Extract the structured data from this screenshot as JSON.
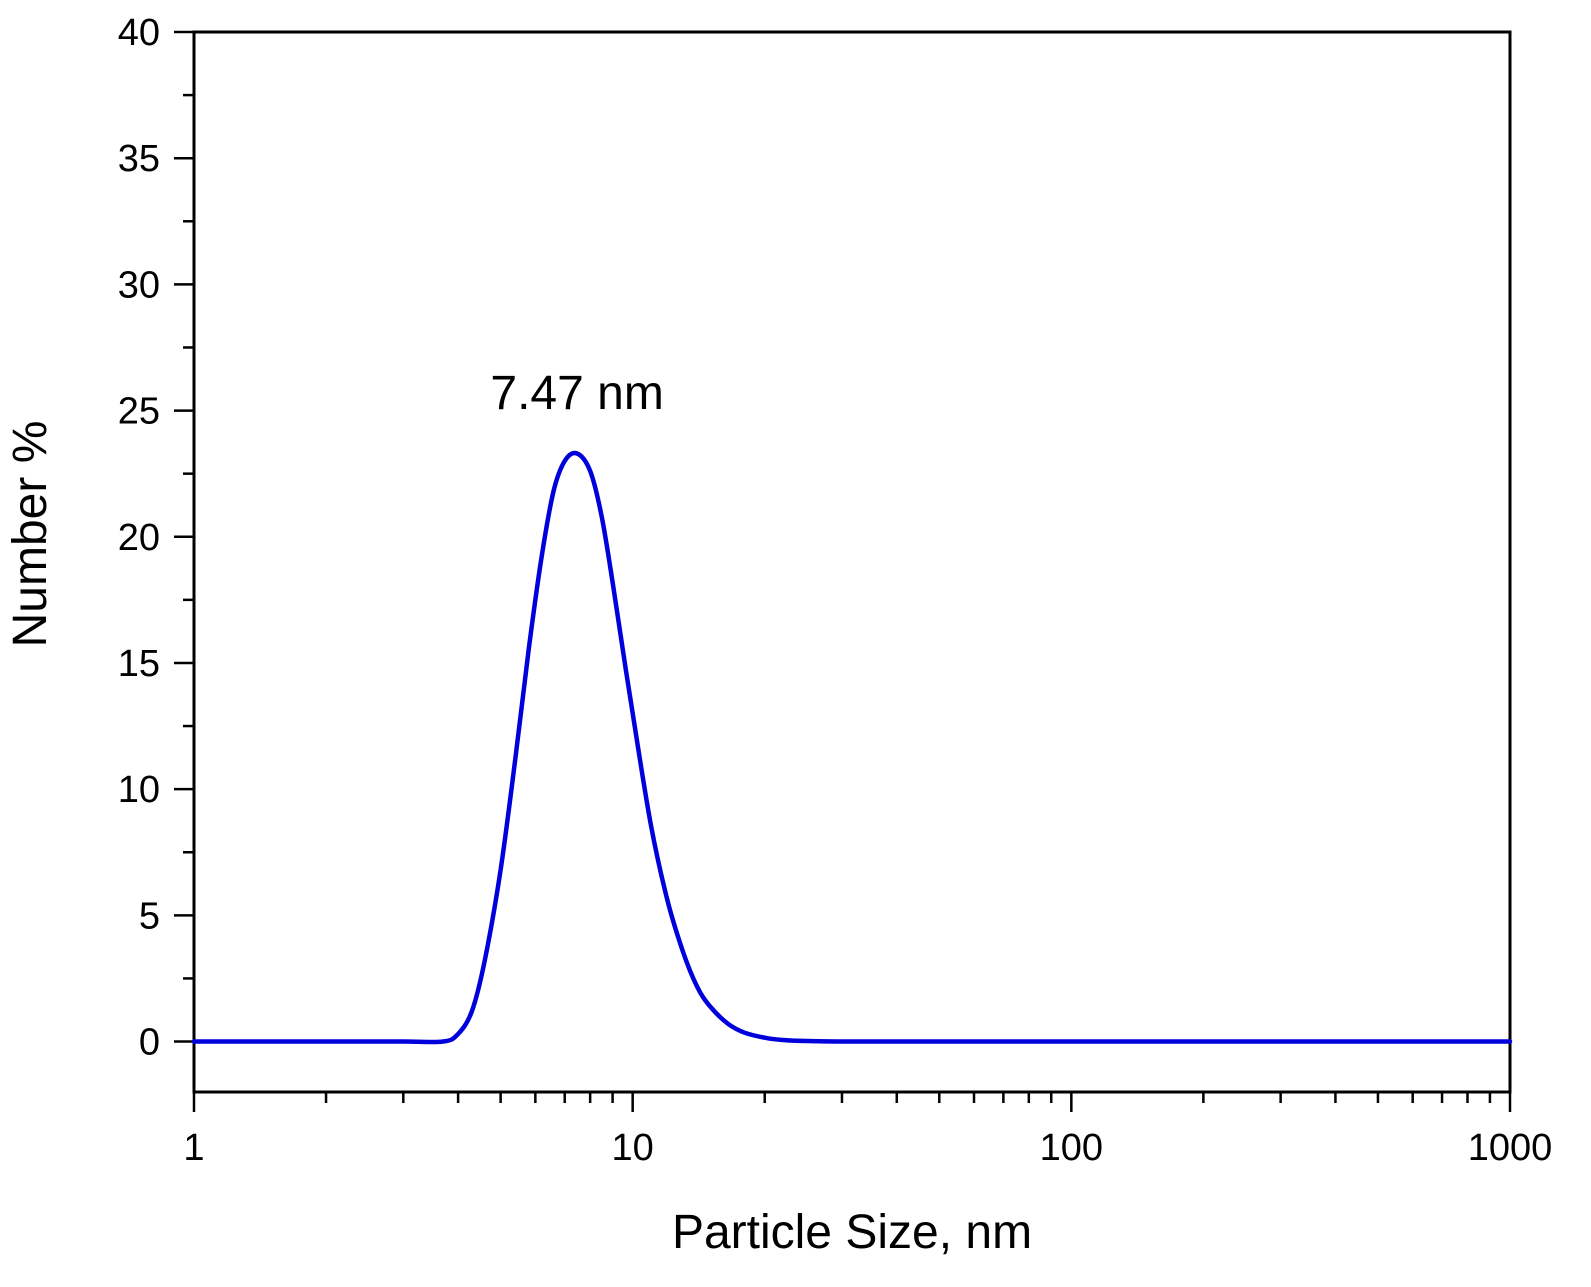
{
  "chart_data": {
    "type": "line",
    "xlabel": "Particle Size, nm",
    "ylabel": "Number %",
    "x_scale": "log",
    "xlim": [
      1,
      1000
    ],
    "ylim": [
      -2,
      40
    ],
    "x_ticks": [
      1,
      10,
      100,
      1000
    ],
    "x_tick_labels": [
      "1",
      "10",
      "100",
      "1000"
    ],
    "y_ticks": [
      0,
      5,
      10,
      15,
      20,
      25,
      30,
      35,
      40
    ],
    "y_tick_labels": [
      "0",
      "5",
      "10",
      "15",
      "20",
      "25",
      "30",
      "35",
      "40"
    ],
    "grid": false,
    "legend": "none",
    "series": [
      {
        "color": "#0000dd",
        "x": [
          1.0,
          2.0,
          3.0,
          3.7,
          4.0,
          4.3,
          4.6,
          5.0,
          5.4,
          5.8,
          6.2,
          6.6,
          7.0,
          7.47,
          8.0,
          8.5,
          9.0,
          9.5,
          10.0,
          11.0,
          12.0,
          13.0,
          14.0,
          15.0,
          16.5,
          18.0,
          20.0,
          22.0,
          25.0,
          30.0,
          50.0,
          100.0,
          300.0,
          1000.0
        ],
        "y": [
          0.0,
          0.0,
          0.0,
          0.0,
          0.3,
          1.2,
          3.2,
          6.8,
          11.2,
          15.6,
          19.2,
          21.8,
          23.0,
          23.3,
          22.6,
          20.8,
          18.2,
          15.5,
          13.0,
          8.6,
          5.6,
          3.6,
          2.2,
          1.4,
          0.7,
          0.35,
          0.15,
          0.06,
          0.02,
          0.0,
          0.0,
          0.0,
          0.0,
          0.0
        ]
      }
    ],
    "annotations": [
      {
        "text": "7.47 nm",
        "x": 7.47,
        "y": 25.7
      }
    ]
  }
}
